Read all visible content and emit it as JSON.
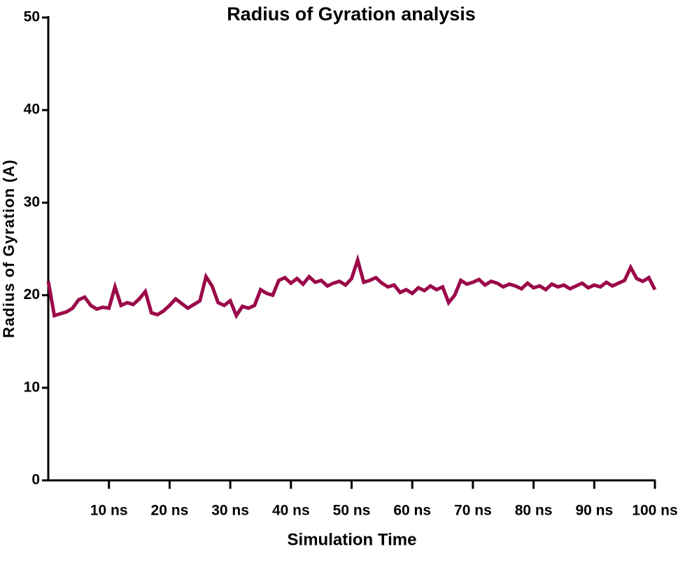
{
  "chart_data": {
    "type": "line",
    "title": "Radius of Gyration analysis",
    "xlabel": "Simulation Time",
    "ylabel": "Radius of Gyration (A)",
    "x": [
      0,
      1,
      2,
      3,
      4,
      5,
      6,
      7,
      8,
      9,
      10,
      11,
      12,
      13,
      14,
      15,
      16,
      17,
      18,
      19,
      20,
      21,
      22,
      23,
      24,
      25,
      26,
      27,
      28,
      29,
      30,
      31,
      32,
      33,
      34,
      35,
      36,
      37,
      38,
      39,
      40,
      41,
      42,
      43,
      44,
      45,
      46,
      47,
      48,
      49,
      50,
      51,
      52,
      53,
      54,
      55,
      56,
      57,
      58,
      59,
      60,
      61,
      62,
      63,
      64,
      65,
      66,
      67,
      68,
      69,
      70,
      71,
      72,
      73,
      74,
      75,
      76,
      77,
      78,
      79,
      80,
      81,
      82,
      83,
      84,
      85,
      86,
      87,
      88,
      89,
      90,
      91,
      92,
      93,
      94,
      95,
      96,
      97,
      98,
      99,
      100
    ],
    "series": [
      {
        "color": "#9b0a4a",
        "values": [
          21.5,
          17.8,
          18.0,
          18.2,
          18.6,
          19.5,
          19.8,
          18.9,
          18.5,
          18.7,
          18.6,
          20.9,
          18.9,
          19.2,
          19.0,
          19.6,
          20.4,
          18.1,
          17.9,
          18.3,
          18.9,
          19.6,
          19.1,
          18.6,
          19.0,
          19.4,
          22.0,
          21.0,
          19.2,
          18.9,
          19.4,
          17.8,
          18.8,
          18.6,
          18.9,
          20.6,
          20.2,
          20.0,
          21.6,
          21.9,
          21.3,
          21.8,
          21.2,
          22.0,
          21.4,
          21.6,
          21.0,
          21.3,
          21.5,
          21.1,
          21.8,
          23.8,
          21.4,
          21.6,
          21.9,
          21.3,
          20.9,
          21.1,
          20.3,
          20.6,
          20.2,
          20.8,
          20.5,
          21.0,
          20.6,
          20.9,
          19.2,
          20.0,
          21.6,
          21.2,
          21.4,
          21.7,
          21.1,
          21.5,
          21.3,
          20.9,
          21.2,
          21.0,
          20.7,
          21.3,
          20.8,
          21.0,
          20.6,
          21.2,
          20.9,
          21.1,
          20.7,
          21.0,
          21.3,
          20.8,
          21.1,
          20.9,
          21.4,
          21.0,
          21.3,
          21.6,
          23.0,
          21.8,
          21.5,
          21.9,
          20.6
        ]
      }
    ],
    "xlim": [
      0,
      100
    ],
    "xticks": [
      {
        "value": 10,
        "label": "10 ns"
      },
      {
        "value": 20,
        "label": "20 ns"
      },
      {
        "value": 30,
        "label": "30 ns"
      },
      {
        "value": 40,
        "label": "40 ns"
      },
      {
        "value": 50,
        "label": "50 ns"
      },
      {
        "value": 60,
        "label": "60 ns"
      },
      {
        "value": 70,
        "label": "70 ns"
      },
      {
        "value": 80,
        "label": "80 ns"
      },
      {
        "value": 90,
        "label": "90 ns"
      },
      {
        "value": 100,
        "label": "100 ns"
      }
    ],
    "ylim": [
      0,
      50
    ],
    "yticks": [
      0,
      10,
      20,
      30,
      40,
      50
    ],
    "grid": false
  }
}
